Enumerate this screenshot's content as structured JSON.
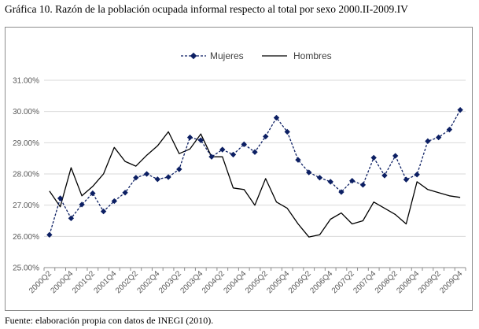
{
  "title": "Gráfica 10. Razón de la población ocupada informal respecto al total por sexo 2000.II-2009.IV",
  "source": "Fuente: elaboración propia con datos de INEGI (2010).",
  "colors": {
    "mujeres": "#0c1f63",
    "hombres": "#000000",
    "grid": "#d9d9d9",
    "axis": "#8c8c8c"
  },
  "chart_data": {
    "type": "line",
    "title": "Razón de la población ocupada informal respecto al total por sexo 2000.II-2009.IV",
    "ylim": [
      25,
      31
    ],
    "yticks": [
      25,
      26,
      27,
      28,
      29,
      30,
      31
    ],
    "ytick_labels": [
      "25.00%",
      "26.00%",
      "27.00%",
      "28.00%",
      "29.00%",
      "30.00%",
      "31.00%"
    ],
    "categories": [
      "2000Q2",
      "2000Q3",
      "2000Q4",
      "2001Q1",
      "2001Q2",
      "2001Q3",
      "2001Q4",
      "2002Q1",
      "2002Q2",
      "2002Q3",
      "2002Q4",
      "2003Q1",
      "2003Q2",
      "2003Q3",
      "2003Q4",
      "2004Q1",
      "2004Q2",
      "2004Q3",
      "2004Q4",
      "2005Q1",
      "2005Q2",
      "2005Q3",
      "2005Q4",
      "2006Q1",
      "2006Q2",
      "2006Q3",
      "2006Q4",
      "2007Q1",
      "2007Q2",
      "2007Q3",
      "2007Q4",
      "2008Q1",
      "2008Q2",
      "2008Q3",
      "2008Q4",
      "2009Q1",
      "2009Q2",
      "2009Q3",
      "2009Q4"
    ],
    "tick_labels": [
      "2000Q2",
      "2000Q4",
      "2001Q2",
      "2001Q4",
      "2002Q2",
      "2002Q4",
      "2003Q2",
      "2003Q4",
      "2004Q2",
      "2004Q4",
      "2005Q2",
      "2005Q4",
      "2006Q2",
      "2006Q4",
      "2007Q2",
      "2007Q4",
      "2008Q2",
      "2008Q4",
      "2009Q2",
      "2009Q4"
    ],
    "grid": true,
    "legend_position": "top-center",
    "series": [
      {
        "name": "Mujeres",
        "style": "dashed-diamond",
        "values": [
          26.05,
          27.22,
          26.58,
          27.02,
          27.38,
          26.8,
          27.13,
          27.4,
          27.88,
          28.0,
          27.83,
          27.9,
          28.15,
          29.17,
          29.08,
          28.55,
          28.78,
          28.62,
          28.95,
          28.7,
          29.2,
          29.8,
          29.35,
          28.45,
          28.05,
          27.88,
          27.75,
          27.42,
          27.78,
          27.65,
          28.52,
          27.95,
          28.58,
          27.82,
          27.98,
          29.05,
          29.17,
          29.42,
          30.05
        ]
      },
      {
        "name": "Hombres",
        "style": "solid",
        "values": [
          27.45,
          26.95,
          28.2,
          27.3,
          27.6,
          28.0,
          28.85,
          28.4,
          28.25,
          28.6,
          28.9,
          29.35,
          28.65,
          28.8,
          29.28,
          28.55,
          28.55,
          27.55,
          27.5,
          27.0,
          27.85,
          27.1,
          26.9,
          26.4,
          25.98,
          26.05,
          26.55,
          26.75,
          26.4,
          26.5,
          27.1,
          26.9,
          26.7,
          26.4,
          27.75,
          27.5,
          27.4,
          27.3,
          27.25
        ]
      }
    ]
  }
}
